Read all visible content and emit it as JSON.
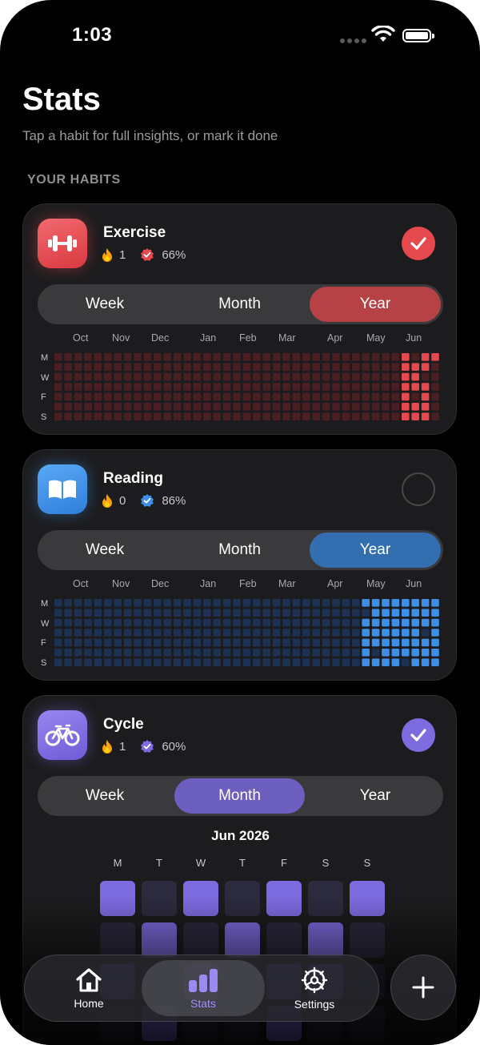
{
  "status_bar": {
    "time": "1:03"
  },
  "header": {
    "title": "Stats",
    "subtitle": "Tap a habit for full insights, or mark it done",
    "section_label": "YOUR HABITS"
  },
  "colors": {
    "exercise_accent": "#e5484d",
    "reading_accent": "#3d8fe6",
    "cycle_accent": "#7d6be0",
    "background": "#000000",
    "card": "#1c1c1e",
    "streak_flame": "#ff9f0a"
  },
  "segment_labels": [
    "Week",
    "Month",
    "Year"
  ],
  "heatmap_months": [
    "Oct",
    "Nov",
    "Dec",
    "Jan",
    "Feb",
    "Mar",
    "Apr",
    "May",
    "Jun"
  ],
  "heatmap_day_labels": [
    "M",
    "W",
    "F",
    "S"
  ],
  "habits": [
    {
      "name": "Exercise",
      "icon": "dumbbell-icon",
      "streak": "1",
      "completion": "66%",
      "done_today": true,
      "selected_range": "Year",
      "year_grid": {
        "weeks": 39,
        "active_from_week": 35,
        "last_week_filled_days": 3,
        "pattern_note_fraction_done_recent": 0.66
      }
    },
    {
      "name": "Reading",
      "icon": "book-icon",
      "streak": "0",
      "completion": "86%",
      "done_today": false,
      "selected_range": "Year",
      "year_grid": {
        "weeks": 39,
        "active_from_week": 31,
        "last_week_filled_days": 7,
        "pattern_note_fraction_done_recent": 0.86
      }
    },
    {
      "name": "Cycle",
      "icon": "bicycle-icon",
      "streak": "1",
      "completion": "60%",
      "done_today": true,
      "selected_range": "Month",
      "month_view": {
        "title": "Jun 2026",
        "weekdays": [
          "M",
          "T",
          "W",
          "T",
          "F",
          "S",
          "S"
        ],
        "rows": [
          [
            1,
            0,
            1,
            0,
            1,
            0,
            1
          ],
          [
            0,
            1,
            0,
            1,
            0,
            1,
            0
          ],
          [
            1,
            0,
            1,
            0,
            1,
            1,
            0
          ],
          [
            0,
            1,
            0,
            0,
            1,
            0,
            0
          ]
        ]
      }
    }
  ],
  "tab_bar": {
    "items": [
      {
        "label": "Home",
        "icon": "house-icon",
        "active": false
      },
      {
        "label": "Stats",
        "icon": "bar-chart-icon",
        "active": true
      },
      {
        "label": "Settings",
        "icon": "gear-icon",
        "active": false
      }
    ],
    "add_button_icon": "plus-icon"
  }
}
